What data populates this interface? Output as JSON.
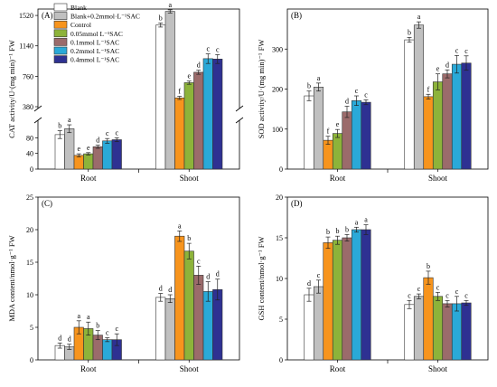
{
  "legend": [
    {
      "label": "Blank",
      "color": "#ffffff"
    },
    {
      "label": "Blank+0.2mmol·L⁻¹SAC",
      "color": "#c0c0c0"
    },
    {
      "label": "Control",
      "color": "#f7941d"
    },
    {
      "label": "0.05mmol L⁻¹SAC",
      "color": "#8db33a"
    },
    {
      "label": "0.1mmol L⁻¹SAC",
      "color": "#9b6b6b"
    },
    {
      "label": "0.2mmol L⁻¹SAC",
      "color": "#2aa9d8"
    },
    {
      "label": "0.4mmol L⁻¹SAC",
      "color": "#2e3192"
    }
  ],
  "chart_data": [
    {
      "type": "bar",
      "panel": "(A)",
      "ylabel": "CAT activity/U·(mg min)⁻¹ FW",
      "categories": [
        "Root",
        "Shoot"
      ],
      "axis_break": {
        "lower_range": [
          0,
          120
        ],
        "upper_range": [
          380,
          1600
        ]
      },
      "yticks": [
        0,
        40,
        80,
        380,
        760,
        1140,
        1520
      ],
      "series": [
        {
          "name": "Blank",
          "values": [
            88,
            1400
          ],
          "errors": [
            10,
            25
          ],
          "letters": [
            "b",
            "b"
          ]
        },
        {
          "name": "Blank+0.2mmol·L⁻¹SAC",
          "values": [
            103,
            1570
          ],
          "errors": [
            10,
            20
          ],
          "letters": [
            "a",
            "a"
          ]
        },
        {
          "name": "Control",
          "values": [
            35,
            490
          ],
          "errors": [
            4,
            20
          ],
          "letters": [
            "e",
            "f"
          ]
        },
        {
          "name": "0.05mmol L⁻¹SAC",
          "values": [
            39,
            680
          ],
          "errors": [
            3,
            20
          ],
          "letters": [
            "e",
            "e"
          ]
        },
        {
          "name": "0.1mmol L⁻¹SAC",
          "values": [
            57,
            810
          ],
          "errors": [
            4,
            25
          ],
          "letters": [
            "d",
            "d"
          ]
        },
        {
          "name": "0.2mmol L⁻¹SAC",
          "values": [
            72,
            980
          ],
          "errors": [
            6,
            60
          ],
          "letters": [
            "c",
            "c"
          ]
        },
        {
          "name": "0.4mmol L⁻¹SAC",
          "values": [
            75,
            975
          ],
          "errors": [
            5,
            55
          ],
          "letters": [
            "c",
            "c"
          ]
        }
      ]
    },
    {
      "type": "bar",
      "panel": "(B)",
      "ylabel": "SOD activity/U·(mg min)⁻¹ FW",
      "categories": [
        "Root",
        "Shoot"
      ],
      "ylim": [
        0,
        400
      ],
      "yticks": [
        0,
        100,
        200,
        300
      ],
      "series": [
        {
          "name": "Blank",
          "values": [
            183,
            323
          ],
          "errors": [
            12,
            6
          ],
          "letters": [
            "b",
            "b"
          ]
        },
        {
          "name": "Blank+0.2mmol·L⁻¹SAC",
          "values": [
            205,
            360
          ],
          "errors": [
            10,
            8
          ],
          "letters": [
            "a",
            "a"
          ]
        },
        {
          "name": "Control",
          "values": [
            72,
            181
          ],
          "errors": [
            10,
            6
          ],
          "letters": [
            "f",
            "f"
          ]
        },
        {
          "name": "0.05mmol L⁻¹SAC",
          "values": [
            89,
            218
          ],
          "errors": [
            10,
            20
          ],
          "letters": [
            "e",
            "e"
          ]
        },
        {
          "name": "0.1mmol L⁻¹SAC",
          "values": [
            143,
            238
          ],
          "errors": [
            14,
            10
          ],
          "letters": [
            "d",
            "d"
          ]
        },
        {
          "name": "0.2mmol L⁻¹SAC",
          "values": [
            171,
            262
          ],
          "errors": [
            12,
            22
          ],
          "letters": [
            "c",
            "c"
          ]
        },
        {
          "name": "0.4mmol L⁻¹SAC",
          "values": [
            167,
            265
          ],
          "errors": [
            6,
            18
          ],
          "letters": [
            "c",
            "c"
          ]
        }
      ]
    },
    {
      "type": "bar",
      "panel": "(C)",
      "ylabel": "MDA content/nmol·g⁻¹ FW",
      "categories": [
        "Root",
        "Shoot"
      ],
      "ylim": [
        0,
        25
      ],
      "yticks": [
        0,
        5,
        10,
        15,
        20,
        25
      ],
      "series": [
        {
          "name": "Blank",
          "values": [
            2.2,
            9.6
          ],
          "errors": [
            0.4,
            0.6
          ],
          "letters": [
            "d",
            "d"
          ]
        },
        {
          "name": "Blank+0.2mmol·L⁻¹SAC",
          "values": [
            2.0,
            9.4
          ],
          "errors": [
            0.4,
            0.6
          ],
          "letters": [
            "d",
            "d"
          ]
        },
        {
          "name": "Control",
          "values": [
            5.0,
            19.0
          ],
          "errors": [
            1.0,
            0.8
          ],
          "letters": [
            "a",
            "a"
          ]
        },
        {
          "name": "0.05mmol L⁻¹SAC",
          "values": [
            4.8,
            16.7
          ],
          "errors": [
            1.0,
            1.2
          ],
          "letters": [
            "a",
            "b"
          ]
        },
        {
          "name": "0.1mmol L⁻¹SAC",
          "values": [
            3.8,
            13.0
          ],
          "errors": [
            0.7,
            1.4
          ],
          "letters": [
            "b",
            "c"
          ]
        },
        {
          "name": "0.2mmol L⁻¹SAC",
          "values": [
            3.1,
            10.5
          ],
          "errors": [
            0.3,
            1.5
          ],
          "letters": [
            "c",
            "d"
          ]
        },
        {
          "name": "0.4mmol L⁻¹SAC",
          "values": [
            3.1,
            10.8
          ],
          "errors": [
            0.9,
            1.6
          ],
          "letters": [
            "c",
            "d"
          ]
        }
      ]
    },
    {
      "type": "bar",
      "panel": "(D)",
      "ylabel": "GSH content/nmol·g⁻¹ FW",
      "categories": [
        "Root",
        "Shoot"
      ],
      "ylim": [
        0,
        20
      ],
      "yticks": [
        0,
        5,
        10,
        15,
        20
      ],
      "series": [
        {
          "name": "Blank",
          "values": [
            8.0,
            6.8
          ],
          "errors": [
            0.8,
            0.5
          ],
          "letters": [
            "d",
            "c"
          ]
        },
        {
          "name": "Blank+0.2mmol·L⁻¹SAC",
          "values": [
            9.0,
            7.8
          ],
          "errors": [
            0.8,
            0.3
          ],
          "letters": [
            "c",
            "c"
          ]
        },
        {
          "name": "Control",
          "values": [
            14.4,
            10.1
          ],
          "errors": [
            0.7,
            0.8
          ],
          "letters": [
            "b",
            "b"
          ]
        },
        {
          "name": "0.05mmol L⁻¹SAC",
          "values": [
            14.7,
            7.8
          ],
          "errors": [
            0.5,
            0.5
          ],
          "letters": [
            "b",
            "c"
          ]
        },
        {
          "name": "0.1mmol L⁻¹SAC",
          "values": [
            15.0,
            6.9
          ],
          "errors": [
            0.4,
            0.4
          ],
          "letters": [
            "b",
            "c"
          ]
        },
        {
          "name": "0.2mmol L⁻¹SAC",
          "values": [
            16.0,
            6.9
          ],
          "errors": [
            0.3,
            0.9
          ],
          "letters": [
            "a",
            "c"
          ]
        },
        {
          "name": "0.4mmol L⁻¹SAC",
          "values": [
            16.0,
            7.0
          ],
          "errors": [
            0.6,
            0.3
          ],
          "letters": [
            "a",
            "c"
          ]
        }
      ]
    }
  ]
}
